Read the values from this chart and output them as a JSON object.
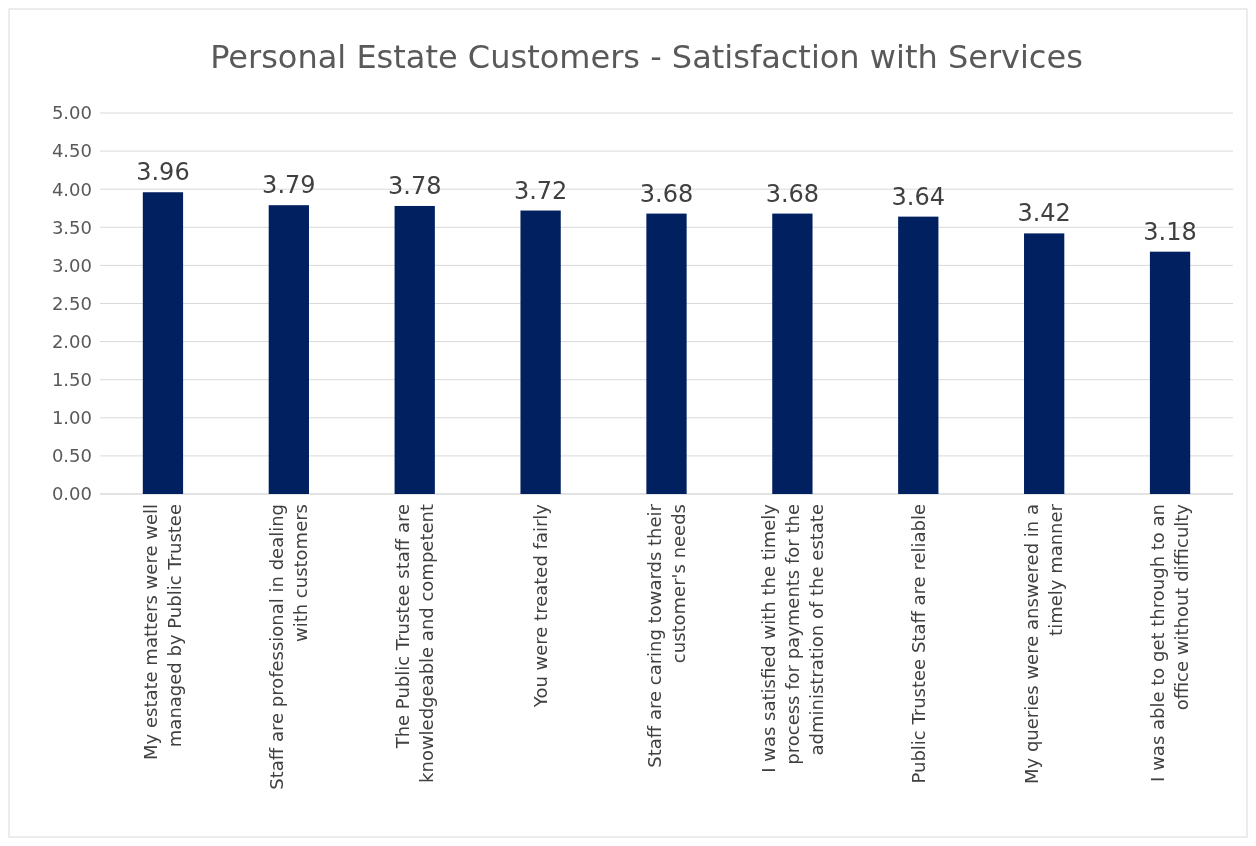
{
  "chart_data": {
    "type": "bar",
    "title": "Personal Estate Customers - Satisfaction with Services",
    "categories": [
      "My estate matters were well managed by Public Trustee",
      "Staff are professional in dealing with customers",
      "The Public Trustee staff are knowledgeable and competent",
      "You were treated fairly",
      "Staff are caring towards their customer's needs",
      "I was satisfied with the timely process for payments for the administration of the estate",
      "Public Trustee Staff are reliable",
      "My queries were answered in a timely manner",
      "I was able to get through to an office without difficulty"
    ],
    "values": [
      3.96,
      3.79,
      3.78,
      3.72,
      3.68,
      3.68,
      3.64,
      3.42,
      3.18
    ],
    "color": "#002060",
    "ylim": [
      0,
      5
    ],
    "yticks": [
      {
        "value": 0,
        "label": "0.00"
      },
      {
        "value": 0.5,
        "label": "0.50"
      },
      {
        "value": 1,
        "label": "1.00"
      },
      {
        "value": 1.5,
        "label": "1.50"
      },
      {
        "value": 2,
        "label": "2.00"
      },
      {
        "value": 2.5,
        "label": "2.50"
      },
      {
        "value": 3,
        "label": "3.00"
      },
      {
        "value": 3.5,
        "label": "3.50"
      },
      {
        "value": 4,
        "label": "4.00"
      },
      {
        "value": 4.5,
        "label": "4.50"
      },
      {
        "value": 5,
        "label": "5.00"
      }
    ],
    "grid": "y",
    "data_labels": true
  }
}
